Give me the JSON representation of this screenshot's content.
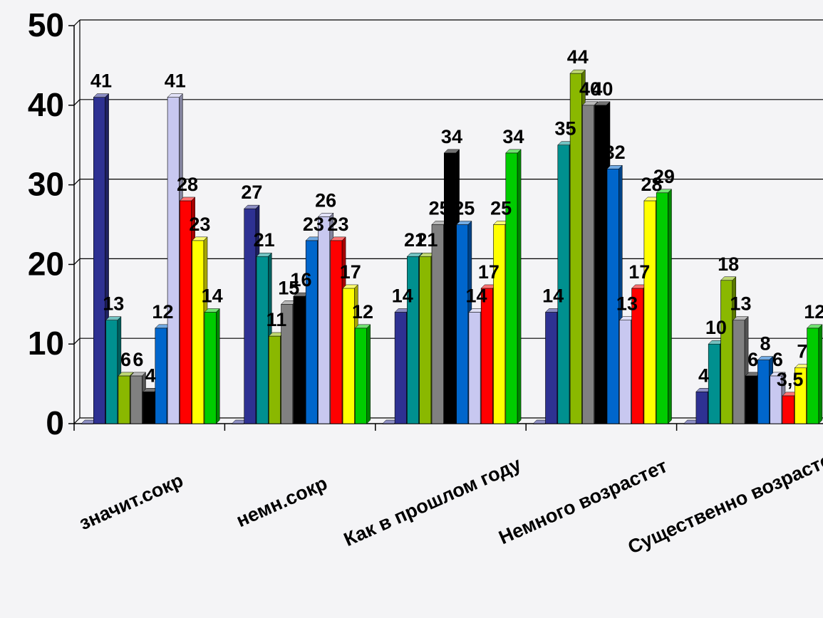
{
  "chart_data": {
    "type": "bar",
    "title": "",
    "xlabel": "",
    "ylabel": "",
    "ylim": [
      0,
      50
    ],
    "yticks": [
      0,
      10,
      20,
      30,
      40,
      50
    ],
    "grid": true,
    "categories": [
      "значит.сокр",
      "немн.сокр",
      "Как в прошлом году",
      "Немного возрастет",
      "Существенно возрастет"
    ],
    "series": [
      {
        "color": "#2e3192",
        "values": [
          0,
          0,
          0,
          0,
          0
        ],
        "labels": [
          "",
          "",
          "",
          "",
          ""
        ]
      },
      {
        "color": "#2e3192",
        "values": [
          41,
          27,
          14,
          14,
          4
        ],
        "labels": [
          "41",
          "27",
          "14",
          "14",
          "4"
        ]
      },
      {
        "color": "#00908f",
        "values": [
          13,
          21,
          21,
          35,
          10
        ],
        "labels": [
          "13",
          "21",
          "21",
          "35",
          "10"
        ]
      },
      {
        "color": "#8ab800",
        "values": [
          6,
          11,
          21,
          44,
          18
        ],
        "labels": [
          "6",
          "11",
          "21",
          "44",
          "18"
        ]
      },
      {
        "color": "#808080",
        "values": [
          6,
          15,
          25,
          40,
          13
        ],
        "labels": [
          "6",
          "15",
          "25",
          "40",
          "13"
        ]
      },
      {
        "color": "#000000",
        "values": [
          4,
          16,
          34,
          40,
          6
        ],
        "labels": [
          "4",
          "16",
          "34",
          "40",
          "6"
        ]
      },
      {
        "color": "#0066cc",
        "values": [
          12,
          23,
          25,
          32,
          8
        ],
        "labels": [
          "12",
          "23",
          "25",
          "32",
          "8"
        ]
      },
      {
        "color": "#c8c8f0",
        "values": [
          41,
          26,
          14,
          13,
          6
        ],
        "labels": [
          "41",
          "26",
          "14",
          "13",
          "6"
        ]
      },
      {
        "color": "#ff0000",
        "values": [
          28,
          23,
          17,
          17,
          3.5
        ],
        "labels": [
          "28",
          "23",
          "17",
          "17",
          "3,5"
        ]
      },
      {
        "color": "#ffff00",
        "values": [
          23,
          17,
          25,
          28,
          7
        ],
        "labels": [
          "23",
          "17",
          "25",
          "28",
          "7"
        ]
      },
      {
        "color": "#00cc00",
        "values": [
          14,
          12,
          34,
          29,
          12
        ],
        "labels": [
          "14",
          "12",
          "34",
          "29",
          "12"
        ]
      }
    ]
  }
}
